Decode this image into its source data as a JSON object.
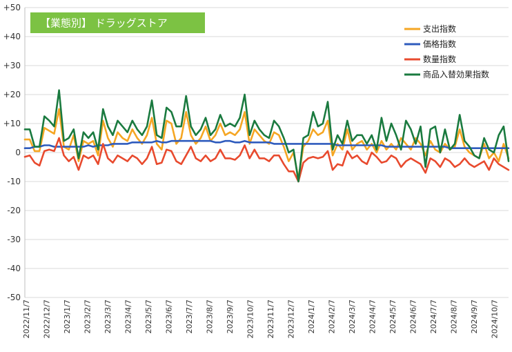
{
  "chart_data": {
    "type": "line",
    "title": "【業態別】 ドラッグストア",
    "title_bg": "#7cc243",
    "ylim": [
      -50,
      50
    ],
    "y_ticks": [
      "+50",
      "+40",
      "+30",
      "+20",
      "+10",
      "0",
      "-10",
      "-20",
      "-30",
      "-40",
      "-50"
    ],
    "x_tick_labels": [
      "2022/11/7",
      "2022/12/7",
      "2023/1/7",
      "2023/2/7",
      "2023/3/7",
      "2023/4/7",
      "2023/5/7",
      "2023/6/7",
      "2023/7/7",
      "2023/8/7",
      "2023/9/7",
      "2023/10/7",
      "2023/11/7",
      "2023/12/7",
      "2024/1/7",
      "2024/2/7",
      "2024/3/7",
      "2024/4/7",
      "2024/5/7",
      "2024/6/7",
      "2024/7/7",
      "2024/8/7",
      "2024/9/7",
      "2024/10/7"
    ],
    "grid": true,
    "legend_position": "top-right",
    "series": [
      {
        "name": "支出指数",
        "color": "#f5a623",
        "values": [
          4.5,
          4.5,
          0.5,
          0.5,
          8.5,
          7.5,
          6.5,
          15,
          2,
          1,
          6,
          -3,
          4,
          3,
          4,
          -1,
          11,
          5,
          2,
          7,
          5,
          4,
          8,
          5,
          3,
          6,
          12,
          3,
          1,
          11,
          10,
          3,
          5,
          14,
          6,
          3,
          5,
          9,
          4,
          6,
          10,
          6,
          7,
          6,
          8,
          14,
          3,
          8,
          6,
          4,
          3,
          7,
          6,
          2,
          -3,
          0,
          -9,
          2,
          4,
          8,
          6,
          7,
          11,
          -1,
          3,
          1,
          8,
          1,
          3,
          4,
          1,
          3,
          0,
          4,
          1,
          3,
          1,
          5,
          3,
          1,
          5,
          3,
          -1,
          4,
          1,
          0,
          3,
          1,
          2,
          8,
          2,
          0,
          -1,
          -2,
          3,
          -2,
          0,
          -3,
          3,
          -2
        ]
      },
      {
        "name": "価格指数",
        "color": "#2e5bbd",
        "values": [
          1.5,
          1.5,
          2,
          2,
          2.5,
          2.5,
          2,
          2,
          2,
          2,
          2,
          2,
          2,
          2.5,
          2,
          2.5,
          2.5,
          2.5,
          3,
          3,
          3,
          3,
          3.5,
          3.5,
          3.5,
          3.5,
          3.5,
          4,
          3.5,
          3.5,
          4,
          4,
          4,
          4,
          4,
          4,
          4,
          4,
          4,
          3.5,
          3.5,
          4,
          4,
          3.5,
          3.5,
          4,
          3.5,
          3.5,
          3.5,
          3.5,
          3.5,
          3,
          3,
          3,
          3,
          3,
          3,
          3,
          3,
          3,
          3,
          3,
          3,
          3,
          2.5,
          2.5,
          2.5,
          2.5,
          2.5,
          2.5,
          2.5,
          2.5,
          2.5,
          2.5,
          2,
          2,
          2,
          2,
          2,
          2,
          2,
          2,
          2,
          2,
          2,
          2,
          2,
          1.5,
          1.5,
          1.5,
          1.5,
          1.5,
          1.5,
          1.5,
          1.5,
          1.5,
          1.5,
          1.5,
          1.5,
          1.5
        ]
      },
      {
        "name": "数量指数",
        "color": "#e84a2e",
        "values": [
          -1.5,
          -1,
          -3.5,
          -4.5,
          0.5,
          1,
          0.5,
          5,
          -1,
          -3,
          -1.5,
          -6,
          -1,
          -2,
          -1,
          -4,
          3,
          -2,
          -3.5,
          -1,
          -2,
          -3,
          -1,
          -2,
          -4,
          -2,
          2,
          -4,
          -3.5,
          1,
          0.5,
          -3,
          -4,
          -1,
          2,
          -2,
          -3,
          -1,
          -3,
          -2,
          1,
          -2,
          -2,
          -2.5,
          -1,
          2.5,
          -2,
          1,
          -2,
          -2,
          -3,
          -1,
          -1,
          -4,
          -6.5,
          -6.5,
          -10,
          -3.5,
          -2,
          -1.5,
          -2,
          -1.5,
          0.5,
          -6,
          -4,
          -4.5,
          0.5,
          -2,
          -1,
          -3,
          -4,
          0,
          -1.5,
          -3.5,
          -3,
          -1,
          -2,
          -5,
          -3,
          -2,
          -3,
          -4,
          -7,
          -2,
          -3,
          -5,
          -2,
          -3,
          -5,
          -4,
          -2,
          -4,
          -5,
          -4,
          -3,
          -6,
          -2,
          -4,
          -5,
          -6
        ]
      },
      {
        "name": "商品入替効果指数",
        "color": "#1a7a3f",
        "values": [
          8,
          8,
          2,
          2,
          12.5,
          11,
          9,
          21.5,
          4,
          5,
          8,
          -2,
          7,
          5,
          7,
          1,
          15,
          9,
          6,
          11,
          9,
          7,
          11,
          8,
          6,
          9,
          18,
          6,
          5,
          15.5,
          14,
          9,
          9,
          19.5,
          9,
          6,
          8,
          12,
          6,
          8,
          13,
          9,
          10,
          9,
          12,
          20,
          6,
          11,
          8,
          6,
          5,
          11,
          9,
          5,
          0,
          1,
          -10,
          5,
          6,
          14,
          9,
          10,
          17.5,
          1,
          6,
          3,
          11,
          4,
          6,
          6,
          3,
          6,
          1,
          12,
          4,
          10,
          6,
          1,
          11,
          8,
          3,
          9,
          -5,
          8,
          9,
          0,
          8,
          1,
          3,
          13,
          4,
          2,
          -1,
          -2,
          5,
          1,
          0,
          6,
          9,
          -3
        ]
      }
    ]
  }
}
